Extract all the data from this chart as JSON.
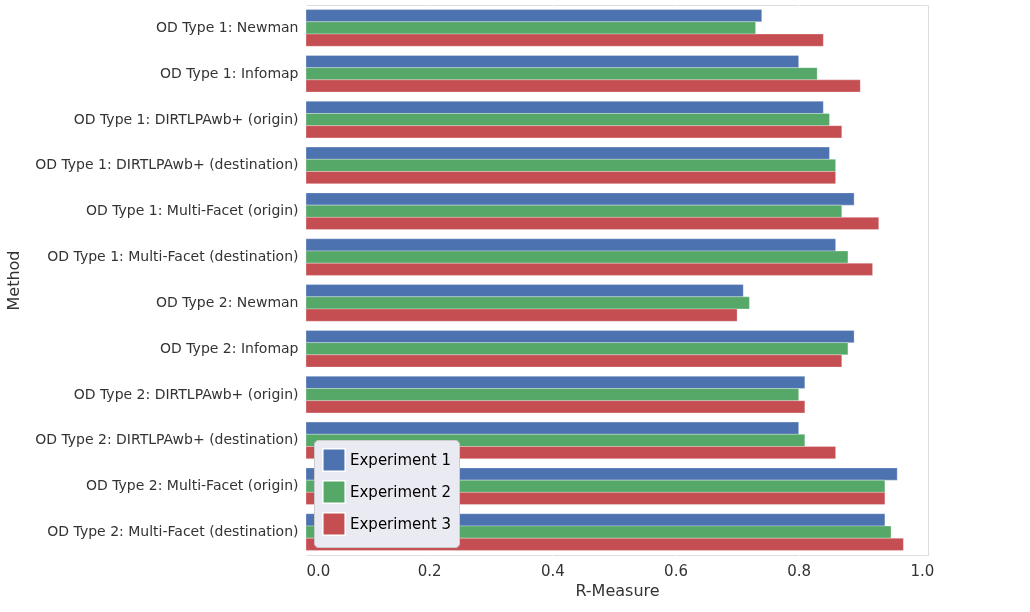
{
  "chart_data": {
    "type": "bar",
    "orientation": "horizontal",
    "xlabel": "R-Measure",
    "ylabel": "Method",
    "categories": [
      "OD Type 1: Newman",
      "OD Type 1: Infomap",
      "OD Type 1: DIRTLPAwb+ (origin)",
      "OD Type 1: DIRTLPAwb+ (destination)",
      "OD Type 1: Multi-Facet  (origin)",
      "OD Type 1: Multi-Facet  (destination)",
      "OD Type 2: Newman",
      "OD Type 2: Infomap",
      "OD Type 2: DIRTLPAwb+ (origin)",
      "OD Type 2: DIRTLPAwb+ (destination)",
      "OD Type 2: Multi-Facet  (origin)",
      "OD Type 2: Multi-Facet  (destination)"
    ],
    "series": [
      {
        "name": "Experiment 1",
        "color": "#4c72b0",
        "values": [
          0.74,
          0.8,
          0.84,
          0.85,
          0.89,
          0.86,
          0.71,
          0.89,
          0.81,
          0.8,
          0.96,
          0.94
        ]
      },
      {
        "name": "Experiment 2",
        "color": "#55a868",
        "values": [
          0.73,
          0.83,
          0.85,
          0.86,
          0.87,
          0.88,
          0.72,
          0.88,
          0.8,
          0.81,
          0.94,
          0.95
        ]
      },
      {
        "name": "Experiment 3",
        "color": "#c44e52",
        "values": [
          0.84,
          0.9,
          0.87,
          0.86,
          0.93,
          0.92,
          0.7,
          0.87,
          0.81,
          0.86,
          0.94,
          0.97
        ]
      }
    ],
    "xlim": [
      0,
      1.01
    ],
    "xticks": [
      {
        "value": 0,
        "label": "0.0"
      },
      {
        "value": 0.2,
        "label": "0.2"
      },
      {
        "value": 0.4,
        "label": "0.4"
      },
      {
        "value": 0.6,
        "label": "0.6"
      },
      {
        "value": 0.8,
        "label": "0.8"
      },
      {
        "value": 1,
        "label": "1.0"
      }
    ],
    "grid": "x",
    "legend": "bottom left"
  }
}
